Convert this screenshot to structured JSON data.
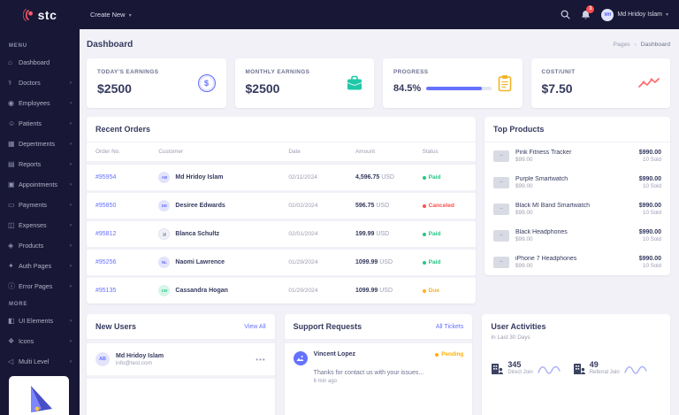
{
  "colors": {
    "navy": "#181735",
    "accent": "#6571ff",
    "paid": "#26c586",
    "canceled": "#ff4e4e",
    "due": "#ffb11c",
    "pending": "#ffaf00",
    "teal_icon": "#1fc8a9",
    "yellow_icon": "#f0b429",
    "red_icon": "#ff6b6b"
  },
  "topbar": {
    "logo_text": "stc",
    "create_new_label": "Create New",
    "notification_count": "3",
    "user": {
      "initials": "MH",
      "name": "Md Hridoy Islam"
    }
  },
  "sidebar": {
    "menu_label": "MENU",
    "more_label": "MORE",
    "menu": [
      {
        "icon": "home-icon",
        "glyph": "⌂",
        "label": "Dashboard",
        "chevron": false
      },
      {
        "icon": "doctor-icon",
        "glyph": "⚕",
        "label": "Doctors",
        "chevron": true
      },
      {
        "icon": "employees-icon",
        "glyph": "◉",
        "label": "Employees",
        "chevron": true
      },
      {
        "icon": "patients-icon",
        "glyph": "☺",
        "label": "Patients",
        "chevron": true
      },
      {
        "icon": "departments-icon",
        "glyph": "▦",
        "label": "Depertments",
        "chevron": true
      },
      {
        "icon": "reports-icon",
        "glyph": "▤",
        "label": "Reports",
        "chevron": true
      },
      {
        "icon": "appointments-icon",
        "glyph": "▣",
        "label": "Appointments",
        "chevron": true
      },
      {
        "icon": "payments-icon",
        "glyph": "▭",
        "label": "Payments",
        "chevron": true
      },
      {
        "icon": "expenses-icon",
        "glyph": "◫",
        "label": "Expenses",
        "chevron": true
      },
      {
        "icon": "products-icon",
        "glyph": "◈",
        "label": "Products",
        "chevron": true
      },
      {
        "icon": "auth-pages-icon",
        "glyph": "✦",
        "label": "Auth Pages",
        "chevron": true
      },
      {
        "icon": "error-pages-icon",
        "glyph": "ⓘ",
        "label": "Error Pages",
        "chevron": true
      }
    ],
    "more": [
      {
        "icon": "ui-elements-icon",
        "glyph": "◧",
        "label": "UI Elements",
        "chevron": true
      },
      {
        "icon": "icons-icon",
        "glyph": "❖",
        "label": "Icons",
        "chevron": true
      },
      {
        "icon": "multi-level-icon",
        "glyph": "◁",
        "label": "Multi Level",
        "chevron": true
      }
    ]
  },
  "page": {
    "title": "Dashboard",
    "breadcrumb_parent": "Pages",
    "breadcrumb_separator": "›",
    "breadcrumb_current": "Dashboard"
  },
  "stats": [
    {
      "label": "TODAY'S EARNINGS",
      "value": "$2500",
      "icon": "dollar-coin-icon"
    },
    {
      "label": "MONTHLY EARNINGS",
      "value": "$2500",
      "icon": "briefcase-icon"
    },
    {
      "label": "PROGRESS",
      "value": "84.5%",
      "progress_percent": 84.5,
      "icon": "clipboard-icon"
    },
    {
      "label": "COST/UNIT",
      "value": "$7.50",
      "icon": "trend-line-icon"
    }
  ],
  "recent_orders": {
    "title": "Recent Orders",
    "columns": [
      "Order No.",
      "Customer",
      "Date",
      "Amount",
      "Status"
    ],
    "rows": [
      {
        "order_no": "#95954",
        "avatar": {
          "type": "initials",
          "text": "AB",
          "theme": "indigo"
        },
        "customer": "Md Hridoy Islam",
        "date": "02/11/2024",
        "amount": "4,596.75",
        "currency": "USD",
        "status": "Paid"
      },
      {
        "order_no": "#95850",
        "avatar": {
          "type": "initials",
          "text": "DE",
          "theme": "indigo"
        },
        "customer": "Desiree Edwards",
        "date": "02/02/2024",
        "amount": "596.75",
        "currency": "USD",
        "status": "Canceled"
      },
      {
        "order_no": "#95812",
        "avatar": {
          "type": "image",
          "text": "",
          "theme": "photo"
        },
        "customer": "Blanca Schultz",
        "date": "02/01/2024",
        "amount": "199.99",
        "currency": "USD",
        "status": "Paid"
      },
      {
        "order_no": "#95256",
        "avatar": {
          "type": "initials",
          "text": "NL",
          "theme": "indigo"
        },
        "customer": "Naomi Lawrence",
        "date": "01/29/2024",
        "amount": "1099.99",
        "currency": "USD",
        "status": "Paid"
      },
      {
        "order_no": "#95135",
        "avatar": {
          "type": "initials",
          "text": "CH",
          "theme": "green"
        },
        "customer": "Cassandra Hogan",
        "date": "01/29/2024",
        "amount": "1099.99",
        "currency": "USD",
        "status": "Due"
      }
    ]
  },
  "top_products": {
    "title": "Top Products",
    "items": [
      {
        "name": "Pink Fitness Tracker",
        "price": "$99.00",
        "total": "$990.00",
        "sold": "10 Sold"
      },
      {
        "name": "Purple Smartwatch",
        "price": "$99.00",
        "total": "$990.00",
        "sold": "10 Sold"
      },
      {
        "name": "Black MI Band Smartwatch",
        "price": "$99.00",
        "total": "$990.00",
        "sold": "10 Sold"
      },
      {
        "name": "Black Headphones",
        "price": "$99.00",
        "total": "$990.00",
        "sold": "10 Sold"
      },
      {
        "name": "iPhone 7 Headphones",
        "price": "$99.00",
        "total": "$990.00",
        "sold": "10 Sold"
      }
    ]
  },
  "new_users": {
    "title": "New Users",
    "link_label": "View All",
    "items": [
      {
        "initials": "AB",
        "name": "Md Hridoy Islam",
        "email": "info@test.com"
      }
    ]
  },
  "support_requests": {
    "title": "Support Requests",
    "link_label": "All Tickets",
    "items": [
      {
        "name": "Vincent Lopez",
        "status": "Pending",
        "message": "Thanks for contact us with your issues...",
        "time": "6 min ago"
      }
    ]
  },
  "user_activities": {
    "title": "User Activities",
    "subtitle": "In Last 30 Days",
    "stats": [
      {
        "value": "345",
        "label": "Direct Join"
      },
      {
        "value": "49",
        "label": "Referral Join"
      }
    ]
  }
}
